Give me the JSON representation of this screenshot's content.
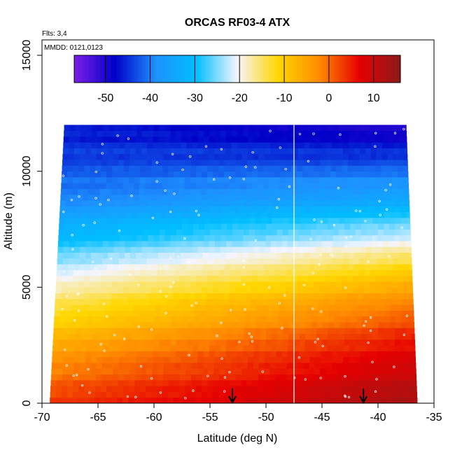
{
  "chart_data": {
    "type": "heatmap",
    "title": "ORCAS RF03-4 ATX",
    "annotations": [
      "Flts: 3,4",
      "MMDD: 0121,0123"
    ],
    "xlabel": "Latitude (deg N)",
    "ylabel": "Altitude (m)",
    "xlim": [
      -70,
      -35
    ],
    "ylim": [
      0,
      15000
    ],
    "x_ticks": [
      "-70",
      "-65",
      "-60",
      "-55",
      "-50",
      "-45",
      "-40",
      "-35"
    ],
    "y_ticks": [
      "0",
      "5000",
      "10000",
      "15000"
    ],
    "colorbar": {
      "range": [
        -57,
        16
      ],
      "ticks": [
        "-50",
        "-40",
        "-30",
        "-20",
        "-10",
        "0",
        "10"
      ],
      "tick_values": [
        -50,
        -40,
        -30,
        -20,
        -10,
        0,
        10
      ],
      "colors": [
        "#7B1FE6",
        "#0000C8",
        "#1E90FF",
        "#00BFFF",
        "#F5F5FF",
        "#FFD700",
        "#FF8C00",
        "#E60000",
        "#8B1A1A"
      ]
    },
    "temperature_profile_south": [
      [
        0,
        4
      ],
      [
        3000,
        -8
      ],
      [
        5000,
        -18
      ],
      [
        7000,
        -30
      ],
      [
        9000,
        -40
      ],
      [
        12000,
        -47
      ]
    ],
    "temperature_profile_north": [
      [
        0,
        14
      ],
      [
        3000,
        5
      ],
      [
        5000,
        -5
      ],
      [
        7000,
        -20
      ],
      [
        9000,
        -35
      ],
      [
        12000,
        -52
      ]
    ],
    "data_extent": {
      "top_altitude": 12000,
      "bottom_left_lat": -69.3,
      "bottom_right_lat": -36.5,
      "top_left_lat": -68,
      "top_right_lat": -37.5
    },
    "vertical_line_lat": -47.5,
    "arrows_lat": [
      -53,
      -41.3
    ],
    "grid": false,
    "legend": "top"
  }
}
